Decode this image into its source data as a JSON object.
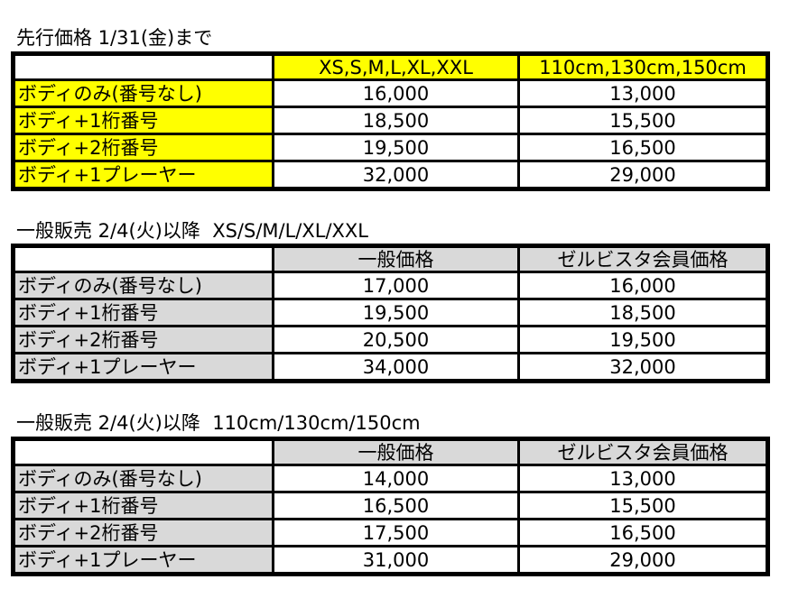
{
  "colors": {
    "yellow": "#ffff00",
    "gray": "#d9d9d9"
  },
  "tables": [
    {
      "title": "先行価格 1/31(金)まで",
      "headers": [
        "",
        "XS,S,M,L,XL,XXL",
        "110cm,130cm,150cm"
      ],
      "rows": [
        [
          "ボディのみ(番号なし)",
          "16,000",
          "13,000"
        ],
        [
          "ボディ+1桁番号",
          "18,500",
          "15,500"
        ],
        [
          "ボディ+2桁番号",
          "19,500",
          "16,500"
        ],
        [
          "ボディ+1プレーヤー",
          "32,000",
          "29,000"
        ]
      ]
    },
    {
      "title": "一般販売 2/4(火)以降  XS/S/M/L/XL/XXL",
      "headers": [
        "",
        "一般価格",
        "ゼルビスタ会員価格"
      ],
      "rows": [
        [
          "ボディのみ(番号なし)",
          "17,000",
          "16,000"
        ],
        [
          "ボディ+1桁番号",
          "19,500",
          "18,500"
        ],
        [
          "ボディ+2桁番号",
          "20,500",
          "19,500"
        ],
        [
          "ボディ+1プレーヤー",
          "34,000",
          "32,000"
        ]
      ]
    },
    {
      "title": "一般販売 2/4(火)以降  110cm/130cm/150cm",
      "headers": [
        "",
        "一般価格",
        "ゼルビスタ会員価格"
      ],
      "rows": [
        [
          "ボディのみ(番号なし)",
          "14,000",
          "13,000"
        ],
        [
          "ボディ+1桁番号",
          "16,500",
          "15,500"
        ],
        [
          "ボディ+2桁番号",
          "17,500",
          "16,500"
        ],
        [
          "ボディ+1プレーヤー",
          "31,000",
          "29,000"
        ]
      ]
    }
  ]
}
